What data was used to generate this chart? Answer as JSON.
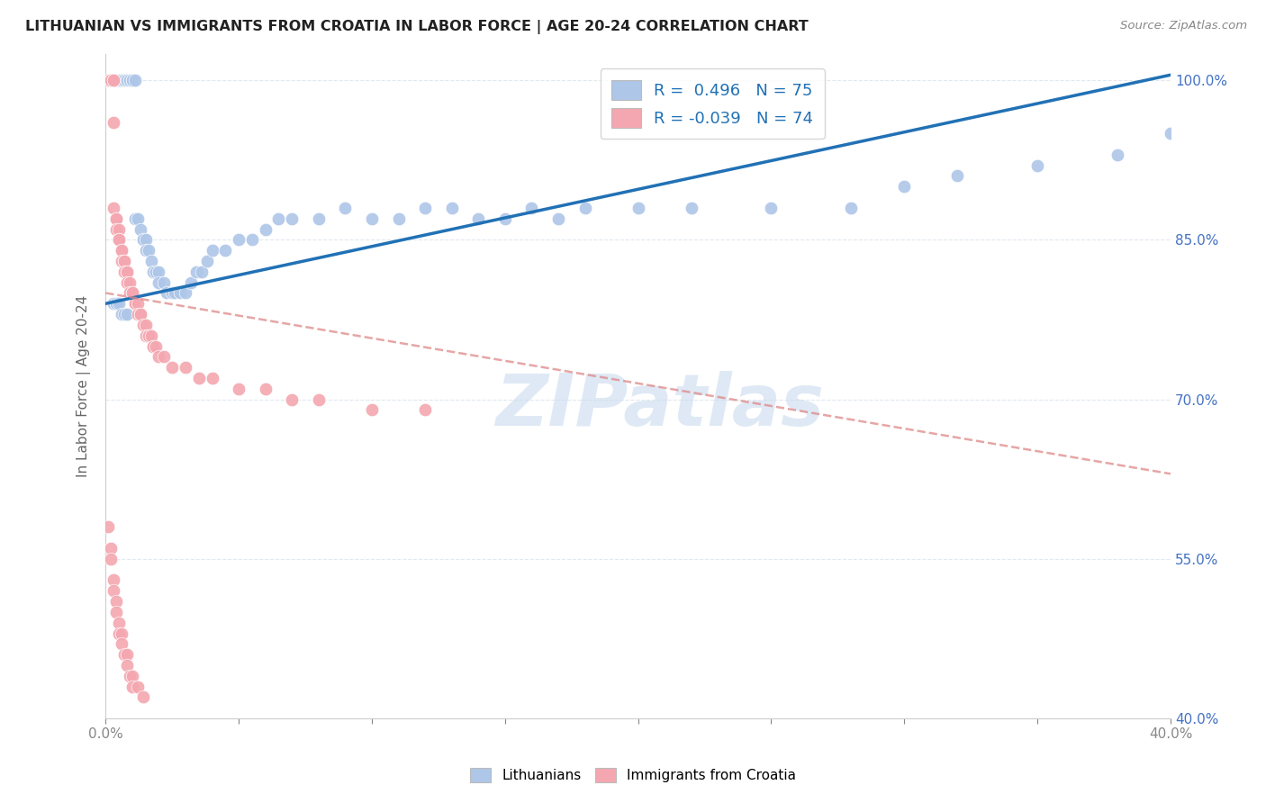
{
  "title": "LITHUANIAN VS IMMIGRANTS FROM CROATIA IN LABOR FORCE | AGE 20-24 CORRELATION CHART",
  "source": "Source: ZipAtlas.com",
  "ylabel": "In Labor Force | Age 20-24",
  "x_min": 0.0,
  "x_max": 0.4,
  "y_min": 0.4,
  "y_max": 1.025,
  "blue_R": 0.496,
  "blue_N": 75,
  "pink_R": -0.039,
  "pink_N": 74,
  "blue_color": "#aec6e8",
  "pink_color": "#f4a7b0",
  "blue_line_color": "#2171b5",
  "pink_line_color": "#de8888",
  "grid_color": "#e0e8f0",
  "watermark": "ZIPatlas",
  "legend_blue_label": "Lithuanians",
  "legend_pink_label": "Immigrants from Croatia",
  "blue_trend_x0": 0.0,
  "blue_trend_y0": 0.79,
  "blue_trend_x1": 0.4,
  "blue_trend_y1": 1.005,
  "pink_trend_x0": 0.0,
  "pink_trend_y0": 0.8,
  "pink_trend_x1": 0.4,
  "pink_trend_y1": 0.63,
  "blue_x": [
    0.001,
    0.002,
    0.003,
    0.003,
    0.003,
    0.004,
    0.004,
    0.005,
    0.005,
    0.006,
    0.007,
    0.007,
    0.008,
    0.008,
    0.009,
    0.009,
    0.01,
    0.01,
    0.011,
    0.011,
    0.012,
    0.013,
    0.014,
    0.014,
    0.015,
    0.015,
    0.016,
    0.017,
    0.018,
    0.019,
    0.02,
    0.02,
    0.022,
    0.023,
    0.025,
    0.026,
    0.028,
    0.03,
    0.032,
    0.034,
    0.036,
    0.038,
    0.04,
    0.045,
    0.05,
    0.055,
    0.06,
    0.065,
    0.07,
    0.08,
    0.09,
    0.1,
    0.11,
    0.12,
    0.13,
    0.14,
    0.15,
    0.16,
    0.17,
    0.18,
    0.2,
    0.22,
    0.25,
    0.28,
    0.3,
    0.32,
    0.35,
    0.38,
    0.4,
    0.003,
    0.004,
    0.005,
    0.006,
    0.007,
    0.008
  ],
  "blue_y": [
    1.0,
    1.0,
    1.0,
    1.0,
    1.0,
    1.0,
    1.0,
    1.0,
    1.0,
    1.0,
    1.0,
    1.0,
    1.0,
    1.0,
    1.0,
    1.0,
    1.0,
    1.0,
    1.0,
    0.87,
    0.87,
    0.86,
    0.85,
    0.85,
    0.85,
    0.84,
    0.84,
    0.83,
    0.82,
    0.82,
    0.82,
    0.81,
    0.81,
    0.8,
    0.8,
    0.8,
    0.8,
    0.8,
    0.81,
    0.82,
    0.82,
    0.83,
    0.84,
    0.84,
    0.85,
    0.85,
    0.86,
    0.87,
    0.87,
    0.87,
    0.88,
    0.87,
    0.87,
    0.88,
    0.88,
    0.87,
    0.87,
    0.88,
    0.87,
    0.88,
    0.88,
    0.88,
    0.88,
    0.88,
    0.9,
    0.91,
    0.92,
    0.93,
    0.95,
    0.79,
    0.79,
    0.79,
    0.78,
    0.78,
    0.78
  ],
  "pink_x": [
    0.001,
    0.001,
    0.002,
    0.002,
    0.002,
    0.003,
    0.003,
    0.003,
    0.003,
    0.004,
    0.004,
    0.004,
    0.005,
    0.005,
    0.005,
    0.006,
    0.006,
    0.006,
    0.007,
    0.007,
    0.007,
    0.008,
    0.008,
    0.008,
    0.009,
    0.009,
    0.01,
    0.01,
    0.011,
    0.011,
    0.012,
    0.012,
    0.013,
    0.013,
    0.014,
    0.015,
    0.015,
    0.016,
    0.016,
    0.017,
    0.018,
    0.018,
    0.019,
    0.02,
    0.022,
    0.025,
    0.03,
    0.035,
    0.04,
    0.05,
    0.06,
    0.07,
    0.08,
    0.1,
    0.12,
    0.001,
    0.002,
    0.002,
    0.003,
    0.003,
    0.004,
    0.004,
    0.005,
    0.005,
    0.006,
    0.006,
    0.007,
    0.008,
    0.008,
    0.009,
    0.01,
    0.01,
    0.012,
    0.014
  ],
  "pink_y": [
    1.0,
    1.0,
    1.0,
    1.0,
    1.0,
    1.0,
    1.0,
    0.96,
    0.88,
    0.87,
    0.87,
    0.86,
    0.86,
    0.85,
    0.85,
    0.84,
    0.84,
    0.83,
    0.83,
    0.83,
    0.82,
    0.82,
    0.82,
    0.81,
    0.81,
    0.8,
    0.8,
    0.8,
    0.79,
    0.79,
    0.79,
    0.78,
    0.78,
    0.78,
    0.77,
    0.77,
    0.76,
    0.76,
    0.76,
    0.76,
    0.75,
    0.75,
    0.75,
    0.74,
    0.74,
    0.73,
    0.73,
    0.72,
    0.72,
    0.71,
    0.71,
    0.7,
    0.7,
    0.69,
    0.69,
    0.58,
    0.56,
    0.55,
    0.53,
    0.52,
    0.51,
    0.5,
    0.49,
    0.48,
    0.48,
    0.47,
    0.46,
    0.46,
    0.45,
    0.44,
    0.44,
    0.43,
    0.43,
    0.42
  ]
}
